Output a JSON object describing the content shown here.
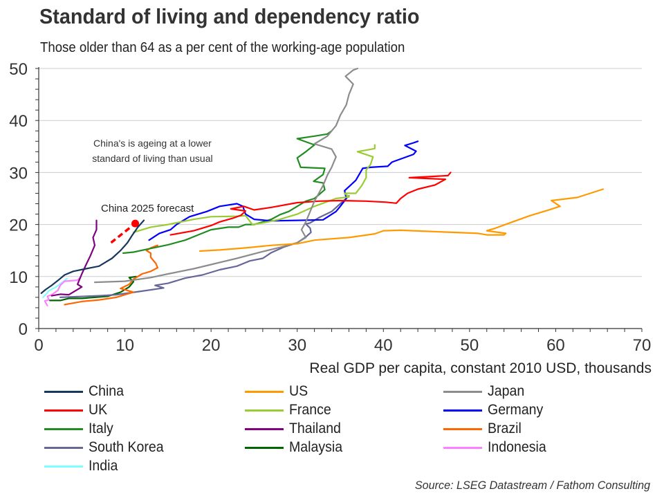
{
  "title": "Standard of living and dependency ratio",
  "subtitle": "Those older than 64 as a per cent of the working-age population",
  "source": "Source: LSEG Datastream / Fathom Consulting",
  "chart_data": {
    "type": "line",
    "title": "Standard of living and dependency ratio",
    "subtitle": "Those older than 64 as a per cent of the working-age population",
    "xlabel": "Real GDP per capita, constant 2010 USD, thousands",
    "ylabel": "",
    "xlim": [
      0,
      70
    ],
    "ylim": [
      0,
      50
    ],
    "xticks": [
      0,
      10,
      20,
      30,
      40,
      50,
      60,
      70
    ],
    "yticks": [
      0,
      10,
      20,
      30,
      40,
      50
    ],
    "x_minor_step": 2,
    "y_minor_step": 2,
    "grid": "horizontal",
    "legend_position": "bottom",
    "annotations": [
      {
        "text_lines": [
          "China's is ageing at a lower",
          "standard of living than usual"
        ],
        "x": 13.2,
        "y": 35
      },
      {
        "text": "China 2025 forecast",
        "x": 11.7,
        "y": 23
      }
    ],
    "series": [
      {
        "name": "China",
        "color": "#17375e",
        "points": [
          [
            0.3,
            6.8
          ],
          [
            0.8,
            7.5
          ],
          [
            1.5,
            8.3
          ],
          [
            2.2,
            9.2
          ],
          [
            3,
            10.3
          ],
          [
            4,
            11
          ],
          [
            5.5,
            11.5
          ],
          [
            7,
            12
          ],
          [
            8.5,
            13.5
          ],
          [
            9.5,
            15
          ],
          [
            10.3,
            16.5
          ],
          [
            10.8,
            17.8
          ],
          [
            11.5,
            19.5
          ],
          [
            12.2,
            20.8
          ]
        ]
      },
      {
        "name": "China 2025 forecast",
        "color": "#ff0000",
        "dashed": true,
        "points": [
          [
            8.4,
            16.5
          ],
          [
            11.2,
            20.2
          ]
        ],
        "marker": [
          11.2,
          20.2
        ]
      },
      {
        "name": "US",
        "color": "#ff9900",
        "points": [
          [
            18.7,
            14.9
          ],
          [
            21,
            15.1
          ],
          [
            24,
            15.5
          ],
          [
            27,
            16
          ],
          [
            30,
            16.3
          ],
          [
            32,
            17
          ],
          [
            36,
            17.5
          ],
          [
            39,
            18.2
          ],
          [
            40,
            18.8
          ],
          [
            42,
            18.9
          ],
          [
            45,
            18.7
          ],
          [
            48,
            18.5
          ],
          [
            51,
            18.3
          ],
          [
            52,
            18
          ],
          [
            54,
            18
          ],
          [
            54.2,
            18.3
          ],
          [
            52,
            18.8
          ],
          [
            53,
            19.3
          ],
          [
            55,
            20.5
          ],
          [
            57,
            21.7
          ],
          [
            59,
            22.7
          ],
          [
            60.5,
            23.5
          ],
          [
            59.5,
            24.6
          ],
          [
            62.5,
            25.2
          ],
          [
            65.5,
            26.8
          ]
        ]
      },
      {
        "name": "Japan",
        "color": "#8c8c8c",
        "points": [
          [
            6.5,
            8.9
          ],
          [
            10,
            9.1
          ],
          [
            13,
            9.8
          ],
          [
            15,
            10.5
          ],
          [
            18,
            11.5
          ],
          [
            20,
            12.3
          ],
          [
            23,
            13.5
          ],
          [
            26,
            14.8
          ],
          [
            28,
            15.6
          ],
          [
            30,
            16.5
          ],
          [
            31,
            17.5
          ],
          [
            30.5,
            19
          ],
          [
            31,
            20.5
          ],
          [
            31.5,
            22.5
          ],
          [
            32,
            24.5
          ],
          [
            32.5,
            26
          ],
          [
            33,
            27.5
          ],
          [
            33.5,
            29.5
          ],
          [
            34,
            31
          ],
          [
            34.5,
            33
          ],
          [
            34,
            34.5
          ],
          [
            32,
            35.5
          ],
          [
            33.5,
            37
          ],
          [
            34.5,
            39
          ],
          [
            35,
            41
          ],
          [
            35.7,
            43
          ],
          [
            36,
            45
          ],
          [
            36.5,
            47
          ],
          [
            35.6,
            48.5
          ],
          [
            36.5,
            49.7
          ],
          [
            37,
            50
          ]
        ]
      },
      {
        "name": "UK",
        "color": "#ff0000",
        "points": [
          [
            15.3,
            18
          ],
          [
            18,
            18.8
          ],
          [
            20,
            19.8
          ],
          [
            21,
            20.5
          ],
          [
            22.5,
            21.2
          ],
          [
            23.5,
            21.8
          ],
          [
            24,
            22.6
          ],
          [
            22.3,
            23
          ],
          [
            23.8,
            23.5
          ],
          [
            25,
            22.8
          ],
          [
            27,
            23.3
          ],
          [
            30,
            24.2
          ],
          [
            32.5,
            24.5
          ],
          [
            35,
            24.6
          ],
          [
            38,
            24.5
          ],
          [
            40.3,
            24.3
          ],
          [
            41.5,
            24.1
          ],
          [
            42,
            25
          ],
          [
            42.8,
            26
          ],
          [
            44,
            26.8
          ],
          [
            46,
            27.6
          ],
          [
            47.2,
            28.7
          ],
          [
            43,
            29
          ],
          [
            47.5,
            29.4
          ],
          [
            47.8,
            30
          ]
        ]
      },
      {
        "name": "France",
        "color": "#99cc33",
        "points": [
          [
            11,
            18.5
          ],
          [
            13,
            19.5
          ],
          [
            15,
            20
          ],
          [
            18,
            21
          ],
          [
            20,
            21.5
          ],
          [
            23,
            21.6
          ],
          [
            24,
            21.7
          ],
          [
            24.8,
            20
          ],
          [
            26,
            20.3
          ],
          [
            28,
            21
          ],
          [
            30,
            22
          ],
          [
            32,
            23.5
          ],
          [
            34.5,
            25
          ],
          [
            36,
            25.3
          ],
          [
            35.5,
            26
          ],
          [
            36.8,
            26
          ],
          [
            37.5,
            27.5
          ],
          [
            38,
            29
          ],
          [
            38,
            30.5
          ],
          [
            38.5,
            31.5
          ],
          [
            38.8,
            33
          ],
          [
            37,
            34
          ],
          [
            39,
            34.6
          ],
          [
            39,
            35.3
          ]
        ]
      },
      {
        "name": "Germany",
        "color": "#0000ff",
        "points": [
          [
            12.8,
            17
          ],
          [
            14,
            18.3
          ],
          [
            15.3,
            19
          ],
          [
            16,
            20
          ],
          [
            17.5,
            21.5
          ],
          [
            19.5,
            22.5
          ],
          [
            21,
            23.5
          ],
          [
            23,
            24
          ],
          [
            23.7,
            23.5
          ],
          [
            24,
            22
          ],
          [
            25,
            21
          ],
          [
            27,
            20.7
          ],
          [
            30,
            20.8
          ],
          [
            33,
            20.9
          ],
          [
            34.5,
            22.5
          ],
          [
            35,
            23.5
          ],
          [
            35.7,
            25
          ],
          [
            35.5,
            26.5
          ],
          [
            36.8,
            28.5
          ],
          [
            37.6,
            30.8
          ],
          [
            38.5,
            31
          ],
          [
            40.5,
            31.2
          ],
          [
            41,
            32
          ],
          [
            43.5,
            33.5
          ],
          [
            43.8,
            34.1
          ],
          [
            42.5,
            35.2
          ],
          [
            43.5,
            35.7
          ],
          [
            44,
            36
          ]
        ]
      },
      {
        "name": "Italy",
        "color": "#228b22",
        "points": [
          [
            9.8,
            14.5
          ],
          [
            11,
            14.7
          ],
          [
            13,
            15.4
          ],
          [
            15,
            16.1
          ],
          [
            17,
            17
          ],
          [
            18.5,
            18
          ],
          [
            20,
            19
          ],
          [
            22,
            19.5
          ],
          [
            23.2,
            19.5
          ],
          [
            24,
            20
          ],
          [
            25,
            20
          ],
          [
            27,
            21
          ],
          [
            28,
            21.9
          ],
          [
            29,
            22.5
          ],
          [
            30,
            23.5
          ],
          [
            31,
            24.5
          ],
          [
            32,
            25
          ],
          [
            33.2,
            26.7
          ],
          [
            33,
            28
          ],
          [
            31.9,
            28.3
          ],
          [
            33,
            29.6
          ],
          [
            33.2,
            30.8
          ],
          [
            30.4,
            31
          ],
          [
            30,
            32.8
          ],
          [
            31,
            34
          ],
          [
            32,
            35.3
          ],
          [
            30,
            36.5
          ],
          [
            32,
            37
          ],
          [
            33.5,
            37.4
          ],
          [
            34,
            38
          ]
        ]
      },
      {
        "name": "Thailand",
        "color": "#800080",
        "points": [
          [
            1.5,
            6.3
          ],
          [
            2.5,
            6.6
          ],
          [
            3.5,
            6.5
          ],
          [
            4.5,
            7.5
          ],
          [
            5,
            8
          ],
          [
            4.5,
            8.5
          ],
          [
            5,
            10.5
          ],
          [
            5.5,
            12.3
          ],
          [
            6,
            14
          ],
          [
            6.5,
            16
          ],
          [
            6.3,
            17.5
          ],
          [
            6.7,
            19
          ],
          [
            6.7,
            20.8
          ]
        ]
      },
      {
        "name": "Brazil",
        "color": "#ff6600",
        "points": [
          [
            3,
            4.6
          ],
          [
            5,
            5.2
          ],
          [
            7,
            5.5
          ],
          [
            9,
            6
          ],
          [
            10,
            6.5
          ],
          [
            11,
            7
          ],
          [
            9.5,
            7.7
          ],
          [
            10.5,
            8.5
          ],
          [
            11,
            9.5
          ],
          [
            12,
            10.5
          ],
          [
            13,
            11
          ],
          [
            13.8,
            11.7
          ],
          [
            13.6,
            12.5
          ],
          [
            13,
            13.7
          ],
          [
            13,
            14.5
          ],
          [
            12.5,
            15
          ],
          [
            13,
            15.5
          ],
          [
            13.8,
            16
          ]
        ]
      },
      {
        "name": "South Korea",
        "color": "#666699",
        "points": [
          [
            2.5,
            6
          ],
          [
            4,
            6.1
          ],
          [
            7,
            6.3
          ],
          [
            9,
            6.5
          ],
          [
            12,
            7.2
          ],
          [
            14.5,
            7.8
          ],
          [
            13.5,
            8.3
          ],
          [
            15,
            8.7
          ],
          [
            17,
            9.7
          ],
          [
            19,
            10.3
          ],
          [
            21,
            11.3
          ],
          [
            23,
            12
          ],
          [
            24.5,
            13
          ],
          [
            26,
            13.5
          ],
          [
            27,
            14.6
          ],
          [
            28.5,
            15.7
          ],
          [
            30,
            16.5
          ],
          [
            31,
            17.6
          ],
          [
            31.6,
            18.5
          ],
          [
            31.5,
            19.3
          ],
          [
            31,
            20.1
          ],
          [
            31.5,
            20.3
          ],
          [
            32.5,
            21.3
          ],
          [
            34,
            22.5
          ],
          [
            35,
            24
          ],
          [
            36,
            25.5
          ]
        ]
      },
      {
        "name": "Malaysia",
        "color": "#006600",
        "points": [
          [
            1.3,
            5.4
          ],
          [
            2.5,
            5.4
          ],
          [
            3.5,
            5.8
          ],
          [
            5,
            5.8
          ],
          [
            6.5,
            6
          ],
          [
            8,
            6.2
          ],
          [
            9.5,
            7
          ],
          [
            10.5,
            8
          ],
          [
            11,
            9
          ],
          [
            10.5,
            9.8
          ],
          [
            11.3,
            10
          ]
        ]
      },
      {
        "name": "Indonesia",
        "color": "#ff80ff",
        "points": [
          [
            1,
            4.4
          ],
          [
            0.7,
            5.3
          ],
          [
            1.2,
            5.5
          ],
          [
            1,
            6.2
          ],
          [
            1.5,
            6.5
          ],
          [
            2.2,
            7.3
          ],
          [
            2.5,
            8.3
          ],
          [
            3,
            9.1
          ],
          [
            4.5,
            9.3
          ],
          [
            4.8,
            9.8
          ]
        ]
      },
      {
        "name": "India",
        "color": "#80ffff",
        "points": [
          [
            0.5,
            6
          ],
          [
            0.8,
            6.5
          ],
          [
            1.2,
            7.3
          ],
          [
            1.8,
            7.8
          ],
          [
            2.2,
            8.2
          ],
          [
            2.5,
            8.6
          ],
          [
            3,
            9.2
          ],
          [
            3.3,
            9.6
          ]
        ]
      }
    ]
  },
  "legend": [
    {
      "label": "China",
      "color": "#17375e"
    },
    {
      "label": "US",
      "color": "#ff9900"
    },
    {
      "label": "Japan",
      "color": "#8c8c8c"
    },
    {
      "label": "UK",
      "color": "#ff0000"
    },
    {
      "label": "France",
      "color": "#99cc33"
    },
    {
      "label": "Germany",
      "color": "#0000ff"
    },
    {
      "label": "Italy",
      "color": "#228b22"
    },
    {
      "label": "Thailand",
      "color": "#800080"
    },
    {
      "label": "Brazil",
      "color": "#ff6600"
    },
    {
      "label": "South Korea",
      "color": "#666699"
    },
    {
      "label": "Malaysia",
      "color": "#006600"
    },
    {
      "label": "Indonesia",
      "color": "#ff80ff"
    },
    {
      "label": "India",
      "color": "#80ffff"
    }
  ]
}
